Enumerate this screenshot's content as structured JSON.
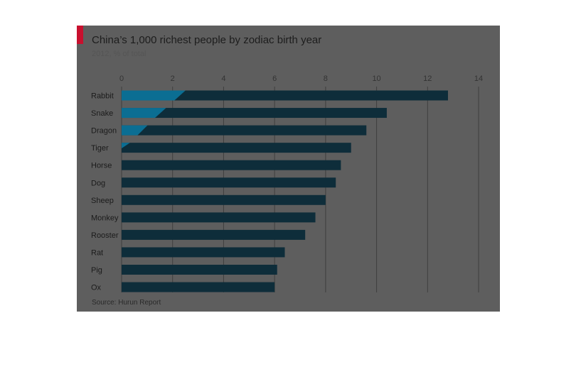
{
  "colors": {
    "accent": "#c8102e",
    "bar_fill": "#0e2d3a",
    "bar_highlight": "#0b6e93",
    "gridline": "#3f3f3f",
    "overlay": "#5e5e5e"
  },
  "chart_data": {
    "type": "bar",
    "orientation": "horizontal",
    "title": "China’s 1,000 richest people by zodiac birth year",
    "subtitle": "2012, % of total",
    "source": "Source: Hurun Report",
    "categories": [
      "Rabbit",
      "Snake",
      "Dragon",
      "Tiger",
      "Horse",
      "Dog",
      "Sheep",
      "Monkey",
      "Rooster",
      "Rat",
      "Pig",
      "Ox"
    ],
    "values": [
      12.8,
      10.4,
      9.6,
      9.0,
      8.6,
      8.4,
      8.0,
      7.6,
      7.2,
      6.4,
      6.1,
      6.0
    ],
    "xlim": [
      0,
      14
    ],
    "xticks": [
      0,
      2,
      4,
      6,
      8,
      10,
      12,
      14
    ],
    "grid": true,
    "xaxis_position": "top",
    "legend": "none"
  }
}
